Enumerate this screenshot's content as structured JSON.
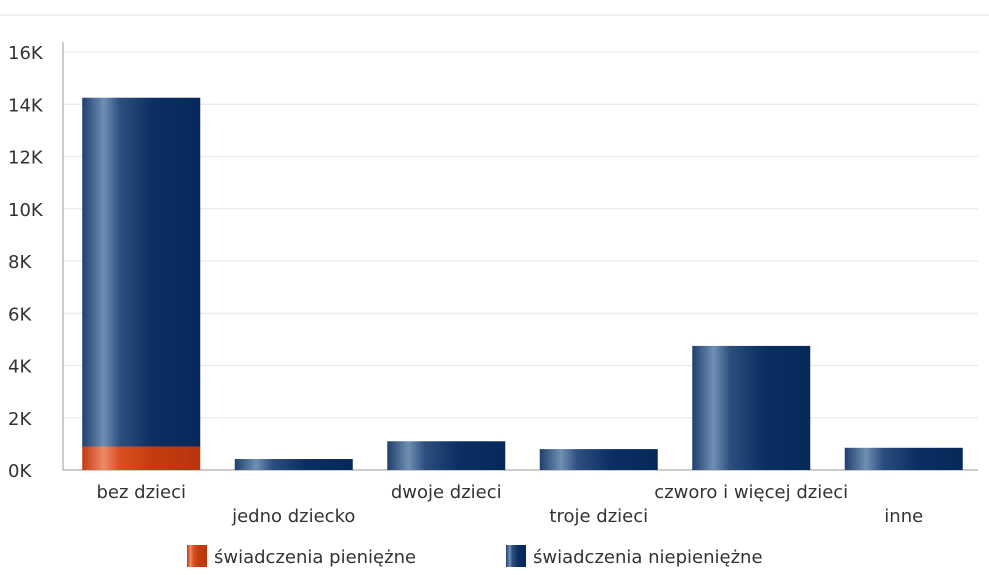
{
  "chart_data": {
    "type": "bar",
    "stacked": true,
    "title": "",
    "xlabel": "",
    "ylabel": "",
    "ylim": [
      0,
      16000
    ],
    "yticks": [
      0,
      2000,
      4000,
      6000,
      8000,
      10000,
      12000,
      14000,
      16000
    ],
    "ytick_labels": [
      "0K",
      "2K",
      "4K",
      "6K",
      "8K",
      "10K",
      "12K",
      "14K",
      "16K"
    ],
    "categories": [
      "bez dzieci",
      "jedno dziecko",
      "dwoje dzieci",
      "troje dzieci",
      "czworo i więcej dzieci",
      "inne"
    ],
    "series": [
      {
        "name": "świadczenia pieniężne",
        "color": "#d4461b",
        "values": [
          900,
          0,
          0,
          0,
          0,
          0
        ]
      },
      {
        "name": "świadczenia niepieniężne",
        "color": "#1f3f6e",
        "values": [
          13350,
          420,
          1100,
          800,
          4750,
          850
        ]
      }
    ],
    "grid": true,
    "legend_position": "bottom"
  }
}
